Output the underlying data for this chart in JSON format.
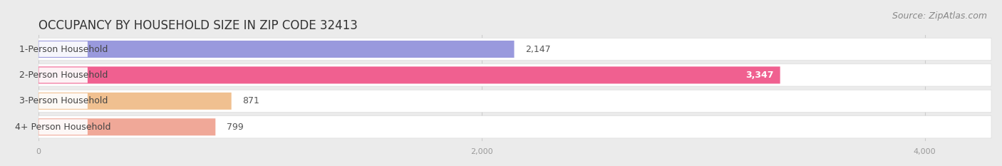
{
  "title": "OCCUPANCY BY HOUSEHOLD SIZE IN ZIP CODE 32413",
  "source": "Source: ZipAtlas.com",
  "categories": [
    "1-Person Household",
    "2-Person Household",
    "3-Person Household",
    "4+ Person Household"
  ],
  "values": [
    2147,
    3347,
    871,
    799
  ],
  "bar_colors": [
    "#9999dd",
    "#f06090",
    "#f0c090",
    "#f0a898"
  ],
  "value_colors": [
    "#555555",
    "#ffffff",
    "#555555",
    "#555555"
  ],
  "xlim": [
    0,
    4300
  ],
  "xticks": [
    0,
    2000,
    4000
  ],
  "background_color": "#ebebeb",
  "row_bg_color": "#f5f5f5",
  "title_fontsize": 12,
  "source_fontsize": 9,
  "label_fontsize": 9,
  "value_fontsize": 9,
  "figsize": [
    14.06,
    2.33
  ],
  "dpi": 100
}
